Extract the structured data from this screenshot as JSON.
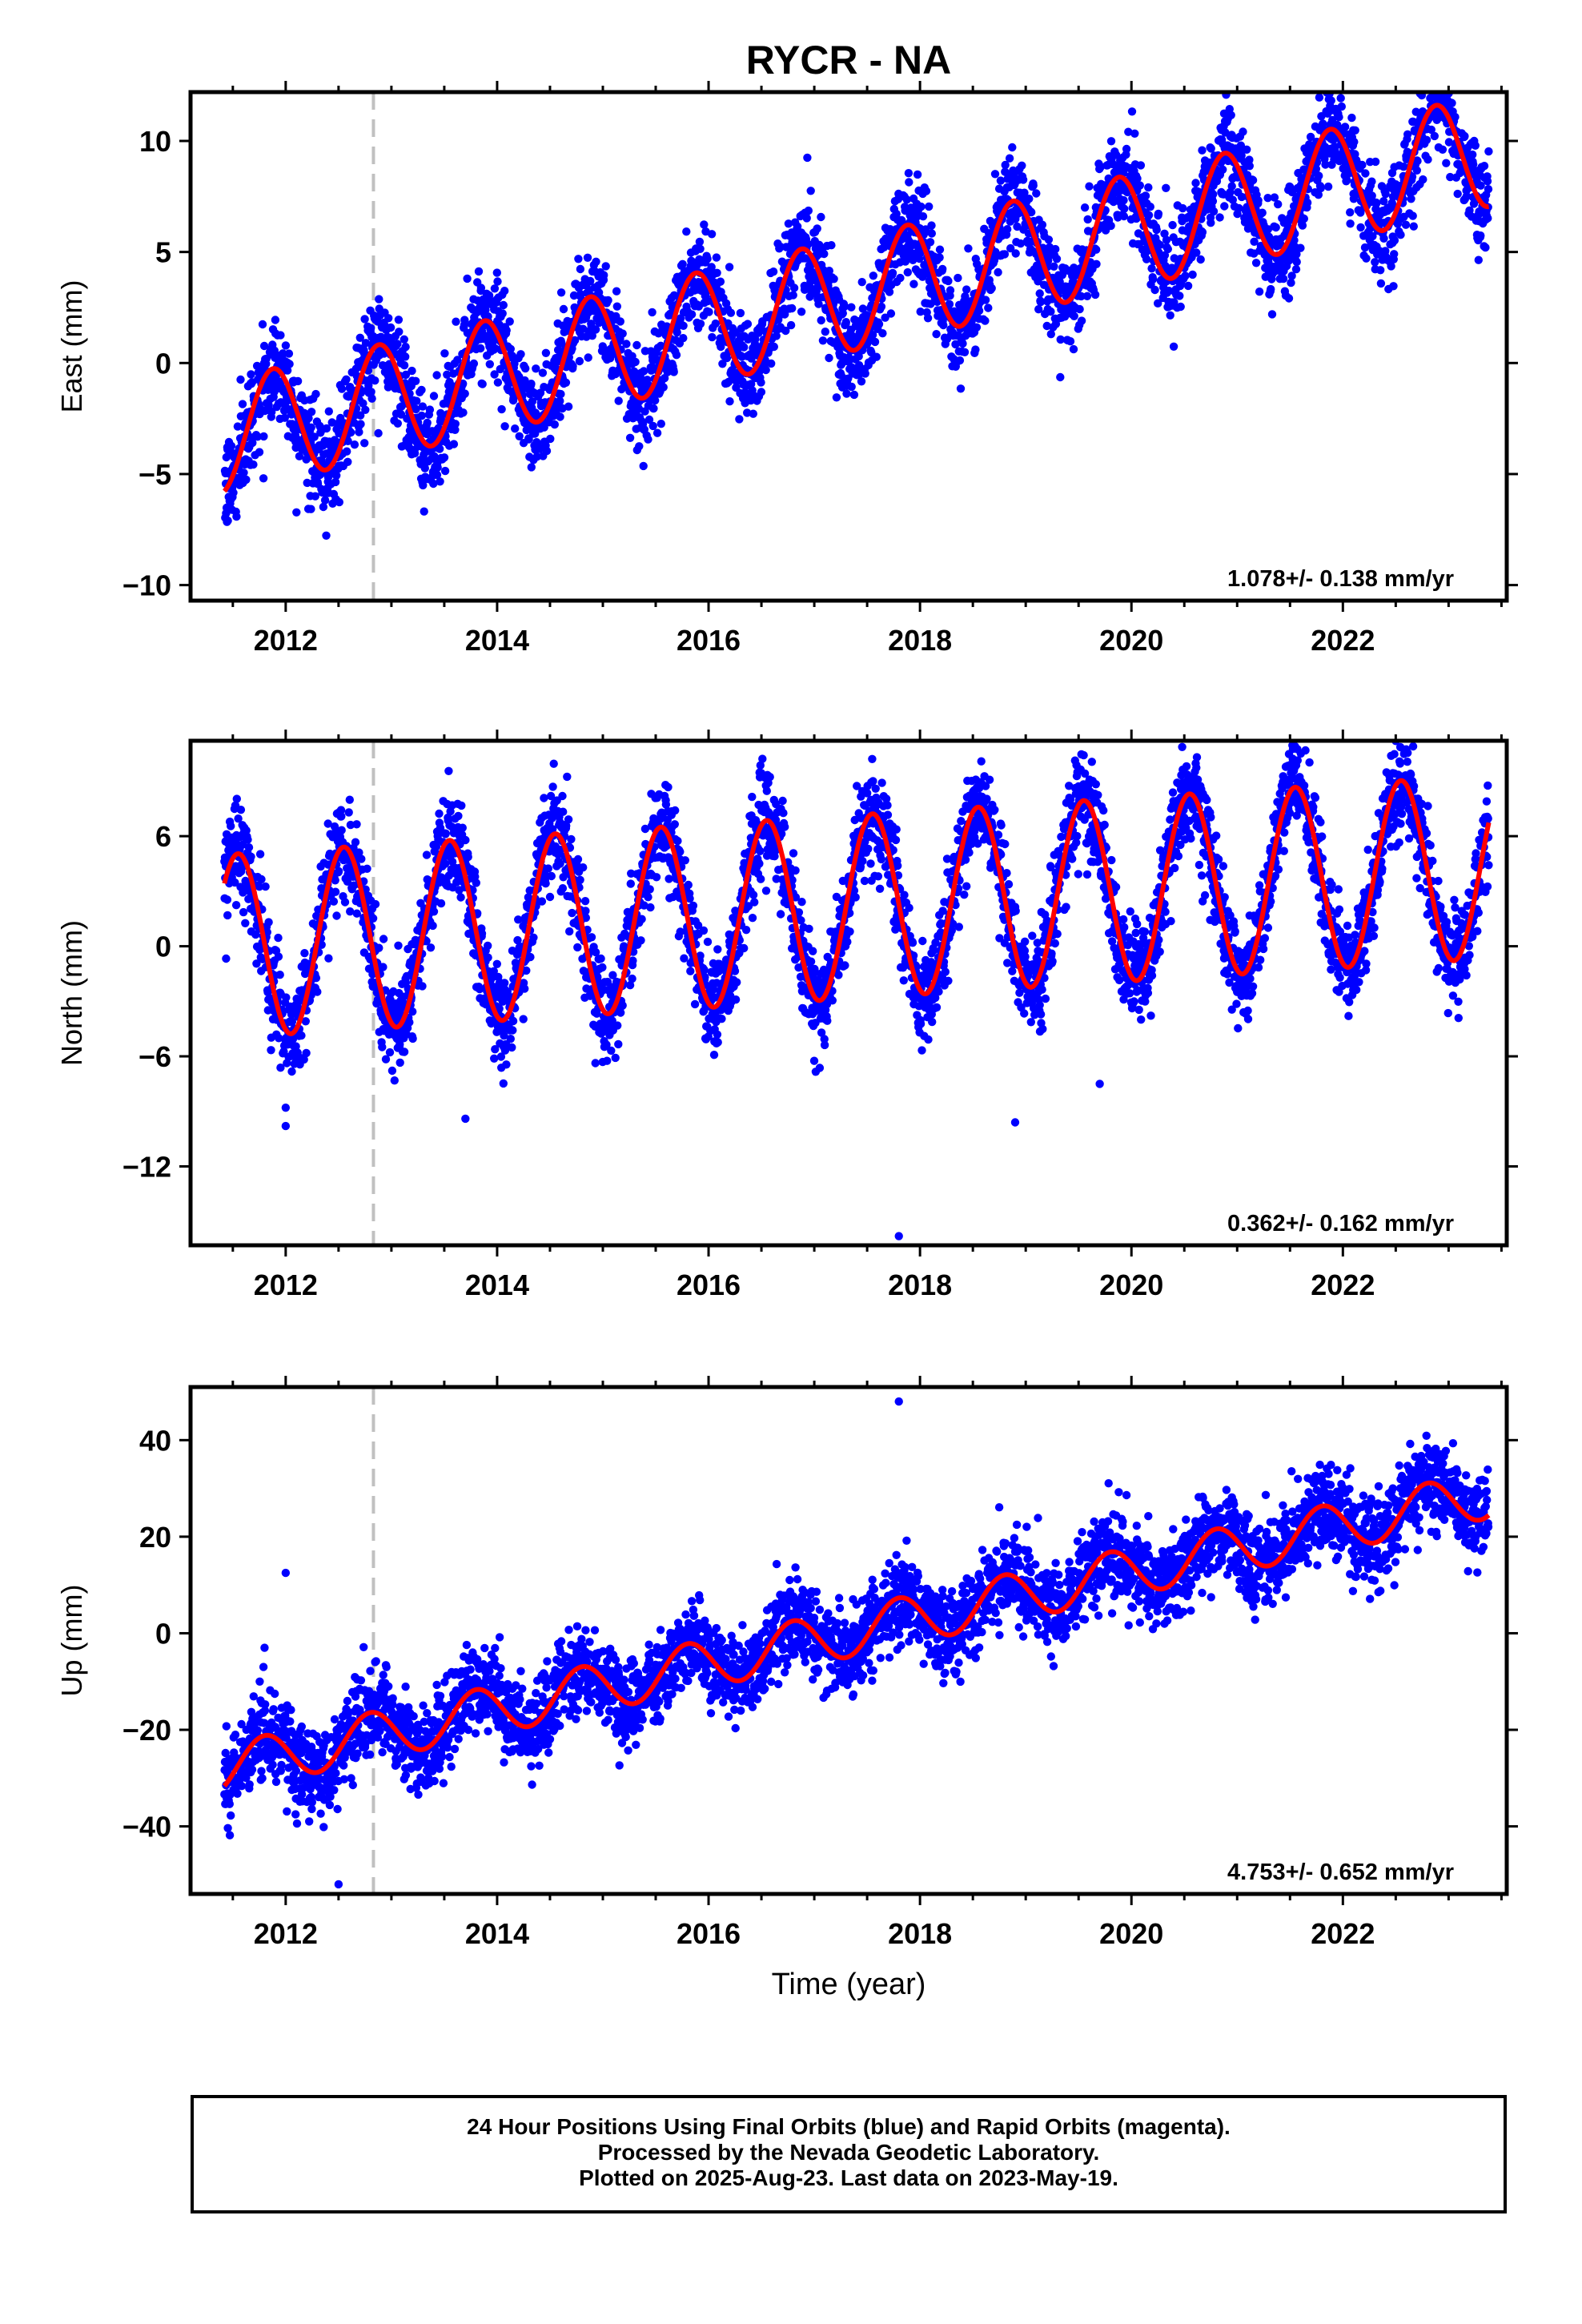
{
  "title": "RYCR - NA",
  "xlabel": "Time (year)",
  "footer": {
    "line1": "24 Hour Positions Using Final Orbits (blue) and Rapid Orbits (magenta).",
    "line2": "Processed by the Nevada Geodetic Laboratory.",
    "line3": "Plotted on 2025-Aug-23. Last data on 2023-May-19."
  },
  "colors": {
    "points": "#0000ff",
    "model": "#ff0000",
    "marker_line": "#c0c0c0",
    "frame": "#000000"
  },
  "chart_data": [
    {
      "type": "scatter",
      "component": "east",
      "ylabel": "East (mm)",
      "rate_text": "1.078+/- 0.138 mm/yr",
      "xlim": [
        2011.1,
        2023.55
      ],
      "ylim": [
        -10.7,
        12.2
      ],
      "x_ticks": [
        2012,
        2014,
        2016,
        2018,
        2020,
        2022
      ],
      "y_ticks": [
        -10,
        -5,
        0,
        5,
        10
      ],
      "y_tick_labels": [
        "−10",
        "−5",
        "0",
        "5",
        "10"
      ],
      "data_start": 2011.42,
      "data_end": 2023.38,
      "vertical_marker_x": 2012.83,
      "model": {
        "intercept": -3.3,
        "t0": 2011.42,
        "rate_mm_yr": 1.078,
        "seasonal_amplitude": 2.55,
        "peak_phase_year": 0.88
      },
      "scatter_sigma": 1.1,
      "outliers": [],
      "grid": false,
      "legend": "none"
    },
    {
      "type": "scatter",
      "component": "north",
      "ylabel": "North (mm)",
      "rate_text": "0.362+/- 0.162 mm/yr",
      "xlim": [
        2011.1,
        2023.55
      ],
      "ylim": [
        -16.3,
        11.2
      ],
      "x_ticks": [
        2012,
        2014,
        2016,
        2018,
        2020,
        2022
      ],
      "y_ticks": [
        -12,
        -6,
        0,
        6
      ],
      "y_tick_labels": [
        "−12",
        "−6",
        "0",
        "6"
      ],
      "data_start": 2011.42,
      "data_end": 2023.38,
      "vertical_marker_x": 2012.83,
      "model": {
        "intercept": 0.0,
        "t0": 2011.42,
        "rate_mm_yr": 0.362,
        "seasonal_amplitude": 5.0,
        "peak_phase_year": 0.55
      },
      "scatter_sigma": 1.3,
      "outliers": [
        [
          2012.0,
          -9.8
        ],
        [
          2012.0,
          -8.8
        ],
        [
          2013.7,
          -9.4
        ],
        [
          2018.9,
          -9.6
        ],
        [
          2017.8,
          -15.8
        ],
        [
          2019.7,
          -7.5
        ]
      ],
      "grid": false,
      "legend": "none"
    },
    {
      "type": "scatter",
      "component": "up",
      "ylabel": "Up (mm)",
      "rate_text": "4.753+/- 0.652 mm/yr",
      "xlim": [
        2011.1,
        2023.55
      ],
      "ylim": [
        -54,
        51
      ],
      "x_ticks": [
        2012,
        2014,
        2016,
        2018,
        2020,
        2022
      ],
      "y_ticks": [
        -40,
        -20,
        0,
        20,
        40
      ],
      "y_tick_labels": [
        "−40",
        "−20",
        "0",
        "20",
        "40"
      ],
      "data_start": 2011.42,
      "data_end": 2023.38,
      "vertical_marker_x": 2012.83,
      "model": {
        "intercept": -28.0,
        "t0": 2011.42,
        "rate_mm_yr": 4.753,
        "seasonal_amplitude": 5.0,
        "peak_phase_year": 0.8
      },
      "scatter_sigma": 4.5,
      "outliers": [
        [
          2012.0,
          12.5
        ],
        [
          2017.8,
          48.0
        ],
        [
          2012.5,
          -52.0
        ],
        [
          2011.8,
          -3.0
        ]
      ],
      "grid": false,
      "legend": "none"
    }
  ]
}
